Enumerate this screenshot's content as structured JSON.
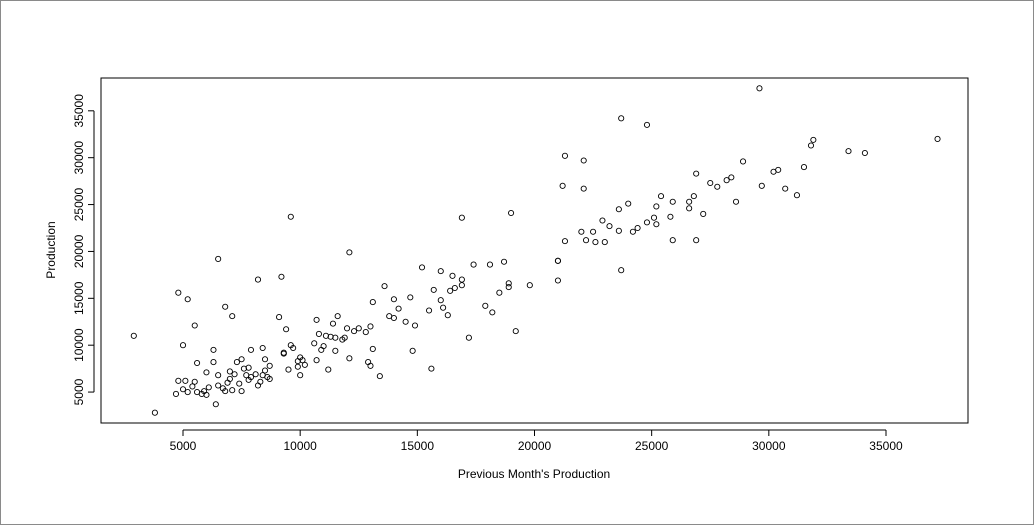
{
  "chart_data": {
    "type": "scatter",
    "title": "",
    "xlabel": "Previous Month's Production",
    "ylabel": "Production",
    "xlim": [
      1500,
      38500
    ],
    "ylim": [
      1700,
      38500
    ],
    "x_ticks": [
      5000,
      10000,
      15000,
      20000,
      25000,
      30000,
      35000
    ],
    "y_ticks": [
      5000,
      10000,
      15000,
      20000,
      25000,
      30000,
      35000
    ],
    "x_tick_labels": [
      "5000",
      "10000",
      "15000",
      "20000",
      "25000",
      "30000",
      "35000"
    ],
    "y_tick_labels": [
      "5000",
      "10000",
      "15000",
      "20000",
      "25000",
      "30000",
      "35000"
    ],
    "grid": false,
    "legend": "none",
    "marker": "open-circle",
    "colors": {
      "points": "#000000",
      "axes": "#000000",
      "background": "#ffffff"
    },
    "points": [
      [
        2900,
        11000
      ],
      [
        3800,
        2800
      ],
      [
        4700,
        4800
      ],
      [
        4800,
        15600
      ],
      [
        4800,
        6200
      ],
      [
        5000,
        5300
      ],
      [
        5000,
        10000
      ],
      [
        5100,
        6200
      ],
      [
        5200,
        14900
      ],
      [
        5200,
        5000
      ],
      [
        5400,
        5600
      ],
      [
        5500,
        12100
      ],
      [
        5500,
        6100
      ],
      [
        5600,
        8100
      ],
      [
        5600,
        5000
      ],
      [
        5800,
        4800
      ],
      [
        5900,
        5100
      ],
      [
        6000,
        4700
      ],
      [
        6000,
        7100
      ],
      [
        6100,
        5500
      ],
      [
        6300,
        8200
      ],
      [
        6300,
        9500
      ],
      [
        6400,
        3700
      ],
      [
        6500,
        5700
      ],
      [
        6500,
        6800
      ],
      [
        6500,
        19200
      ],
      [
        6700,
        5400
      ],
      [
        6800,
        14100
      ],
      [
        6800,
        5100
      ],
      [
        6900,
        6000
      ],
      [
        7000,
        7200
      ],
      [
        7000,
        6400
      ],
      [
        7100,
        13100
      ],
      [
        7100,
        5200
      ],
      [
        7200,
        6900
      ],
      [
        7300,
        8200
      ],
      [
        7400,
        5900
      ],
      [
        7500,
        8500
      ],
      [
        7500,
        5100
      ],
      [
        7600,
        7500
      ],
      [
        7700,
        6800
      ],
      [
        7800,
        7600
      ],
      [
        7800,
        6300
      ],
      [
        7900,
        6600
      ],
      [
        7900,
        9500
      ],
      [
        8100,
        6900
      ],
      [
        8200,
        17000
      ],
      [
        8200,
        5700
      ],
      [
        8300,
        6100
      ],
      [
        8400,
        9700
      ],
      [
        8400,
        6800
      ],
      [
        8500,
        8500
      ],
      [
        8500,
        7300
      ],
      [
        8600,
        6600
      ],
      [
        8700,
        7800
      ],
      [
        8700,
        6400
      ],
      [
        9100,
        13000
      ],
      [
        9200,
        17300
      ],
      [
        9300,
        9100
      ],
      [
        9300,
        9200
      ],
      [
        9400,
        11700
      ],
      [
        9500,
        7400
      ],
      [
        9600,
        23700
      ],
      [
        9600,
        10000
      ],
      [
        9700,
        9700
      ],
      [
        9900,
        8300
      ],
      [
        9900,
        7700
      ],
      [
        10000,
        8700
      ],
      [
        10000,
        6800
      ],
      [
        10100,
        8400
      ],
      [
        10200,
        7900
      ],
      [
        10600,
        10200
      ],
      [
        10700,
        12700
      ],
      [
        10700,
        8400
      ],
      [
        10800,
        11200
      ],
      [
        10900,
        9500
      ],
      [
        11000,
        9900
      ],
      [
        11100,
        11000
      ],
      [
        11200,
        7400
      ],
      [
        11300,
        10900
      ],
      [
        11400,
        12300
      ],
      [
        11500,
        10800
      ],
      [
        11500,
        9400
      ],
      [
        11600,
        13100
      ],
      [
        11800,
        10600
      ],
      [
        11900,
        10800
      ],
      [
        12000,
        11800
      ],
      [
        12100,
        19900
      ],
      [
        12100,
        8600
      ],
      [
        12300,
        11500
      ],
      [
        12500,
        11800
      ],
      [
        12800,
        11400
      ],
      [
        12900,
        8200
      ],
      [
        13000,
        7800
      ],
      [
        13000,
        12000
      ],
      [
        13100,
        14600
      ],
      [
        13100,
        9600
      ],
      [
        13400,
        6700
      ],
      [
        13600,
        16300
      ],
      [
        13800,
        13100
      ],
      [
        14000,
        12900
      ],
      [
        14000,
        14900
      ],
      [
        14200,
        13900
      ],
      [
        14500,
        12500
      ],
      [
        14700,
        15100
      ],
      [
        14800,
        9400
      ],
      [
        14900,
        12100
      ],
      [
        15200,
        18300
      ],
      [
        15500,
        13700
      ],
      [
        15600,
        7500
      ],
      [
        15700,
        15900
      ],
      [
        16000,
        17900
      ],
      [
        16000,
        14800
      ],
      [
        16100,
        14000
      ],
      [
        16300,
        13200
      ],
      [
        16400,
        15800
      ],
      [
        16500,
        17400
      ],
      [
        16600,
        16100
      ],
      [
        16900,
        23600
      ],
      [
        16900,
        16400
      ],
      [
        16900,
        17000
      ],
      [
        17200,
        10800
      ],
      [
        17400,
        18600
      ],
      [
        17900,
        14200
      ],
      [
        18100,
        18600
      ],
      [
        18200,
        13500
      ],
      [
        18500,
        15600
      ],
      [
        18700,
        18900
      ],
      [
        18900,
        16200
      ],
      [
        18900,
        16600
      ],
      [
        19000,
        24100
      ],
      [
        19200,
        11500
      ],
      [
        19800,
        16400
      ],
      [
        21000,
        19000
      ],
      [
        21000,
        16900
      ],
      [
        21000,
        19000
      ],
      [
        21200,
        27000
      ],
      [
        21300,
        21100
      ],
      [
        21300,
        30200
      ],
      [
        22000,
        22100
      ],
      [
        22100,
        26700
      ],
      [
        22100,
        29700
      ],
      [
        22200,
        21200
      ],
      [
        22500,
        22100
      ],
      [
        22600,
        21000
      ],
      [
        22900,
        23300
      ],
      [
        23000,
        21000
      ],
      [
        23200,
        22700
      ],
      [
        23600,
        24500
      ],
      [
        23600,
        22200
      ],
      [
        23700,
        34200
      ],
      [
        23700,
        18000
      ],
      [
        24000,
        25100
      ],
      [
        24200,
        22100
      ],
      [
        24400,
        22500
      ],
      [
        24800,
        33500
      ],
      [
        24800,
        23100
      ],
      [
        25100,
        23600
      ],
      [
        25200,
        22900
      ],
      [
        25200,
        24800
      ],
      [
        25400,
        25900
      ],
      [
        25800,
        23700
      ],
      [
        25900,
        21200
      ],
      [
        25900,
        25300
      ],
      [
        26600,
        25300
      ],
      [
        26600,
        24600
      ],
      [
        26800,
        25900
      ],
      [
        26900,
        28300
      ],
      [
        26900,
        21200
      ],
      [
        27200,
        24000
      ],
      [
        27500,
        27300
      ],
      [
        27800,
        26900
      ],
      [
        28200,
        27600
      ],
      [
        28400,
        27900
      ],
      [
        28600,
        25300
      ],
      [
        28900,
        29600
      ],
      [
        29600,
        37400
      ],
      [
        29700,
        27000
      ],
      [
        30200,
        28500
      ],
      [
        30400,
        28700
      ],
      [
        30700,
        26700
      ],
      [
        31200,
        26000
      ],
      [
        31500,
        29000
      ],
      [
        31800,
        31300
      ],
      [
        31900,
        31900
      ],
      [
        33400,
        30700
      ],
      [
        34100,
        30500
      ],
      [
        37200,
        32000
      ]
    ]
  }
}
